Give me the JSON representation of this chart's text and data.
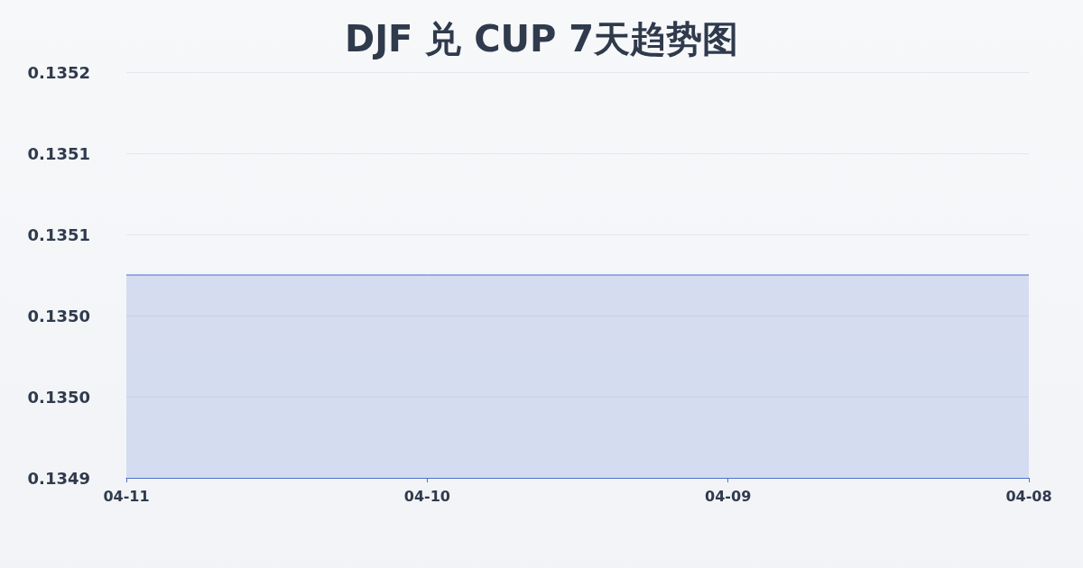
{
  "chart_data": {
    "type": "area",
    "title": "DJF 兑 CUP 7天趋势图",
    "categories": [
      "04-11",
      "04-10",
      "04-09",
      "04-08"
    ],
    "series": [
      {
        "color": "#4a6fd0",
        "values": [
          0.13505,
          0.13505,
          0.13505,
          0.13505
        ]
      }
    ],
    "ylim": [
      0.1349,
      0.1352
    ],
    "yticks": [
      {
        "value": 0.1349,
        "label": "0.1349"
      },
      {
        "value": 0.13496,
        "label": "0.1350"
      },
      {
        "value": 0.13502,
        "label": "0.1350"
      },
      {
        "value": 0.13508,
        "label": "0.1351"
      },
      {
        "value": 0.13514,
        "label": "0.1351"
      },
      {
        "value": 0.1352,
        "label": "0.1352"
      }
    ],
    "grid": "y",
    "marker": "none",
    "line_style": "solid"
  }
}
